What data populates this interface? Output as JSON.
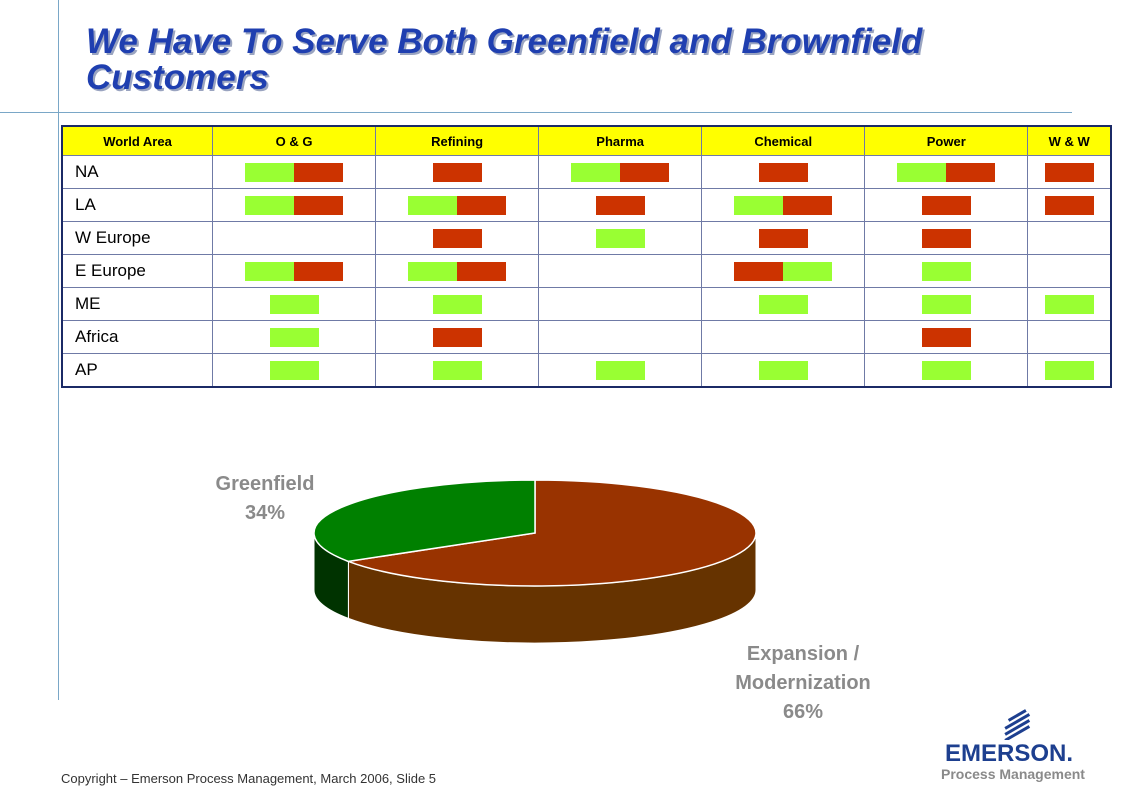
{
  "slide": {
    "title_line1": "We Have To Serve Both Greenfield and Brownfield",
    "title_line2": "Customers",
    "footer": "Copyright – Emerson Process Management, March 2006, Slide 5"
  },
  "table": {
    "headers": [
      "World Area",
      "O & G",
      "Refining",
      "Pharma",
      "Chemical",
      "Power",
      "W & W"
    ],
    "legend_colors": {
      "g": "#99ff33",
      "r": "#cc3300"
    },
    "rows": [
      {
        "area": "NA",
        "cells": [
          "gr",
          "r",
          "gr",
          "r",
          "gr",
          "r"
        ]
      },
      {
        "area": "LA",
        "cells": [
          "gr",
          "gr",
          "r",
          "gr",
          "r",
          "r"
        ]
      },
      {
        "area": "W Europe",
        "cells": [
          "",
          "r",
          "g",
          "r",
          "r",
          ""
        ]
      },
      {
        "area": "E Europe",
        "cells": [
          "gr",
          "gr",
          "",
          "rg",
          "g",
          ""
        ]
      },
      {
        "area": "ME",
        "cells": [
          "g",
          "g",
          "",
          "g",
          "g",
          "g"
        ]
      },
      {
        "area": "Africa",
        "cells": [
          "g",
          "r",
          "",
          "",
          "r",
          ""
        ]
      },
      {
        "area": "AP",
        "cells": [
          "g",
          "g",
          "g",
          "g",
          "g",
          "g"
        ]
      }
    ]
  },
  "chart_data": {
    "type": "pie",
    "title": "",
    "slices": [
      {
        "name": "Greenfield",
        "value": 34,
        "label": "34%",
        "color": "#008000",
        "side_color": "#003300"
      },
      {
        "name": "Expansion / Modernization",
        "value": 66,
        "label": "66%",
        "color": "#993300",
        "side_color": "#663300"
      }
    ],
    "labels": {
      "greenfield_name": "Greenfield",
      "greenfield_pct": "34%",
      "expansion_name_1": "Expansion /",
      "expansion_name_2": "Modernization",
      "expansion_pct": "66%"
    }
  },
  "logo": {
    "word": "EMERSON.",
    "sub": "Process Management"
  }
}
